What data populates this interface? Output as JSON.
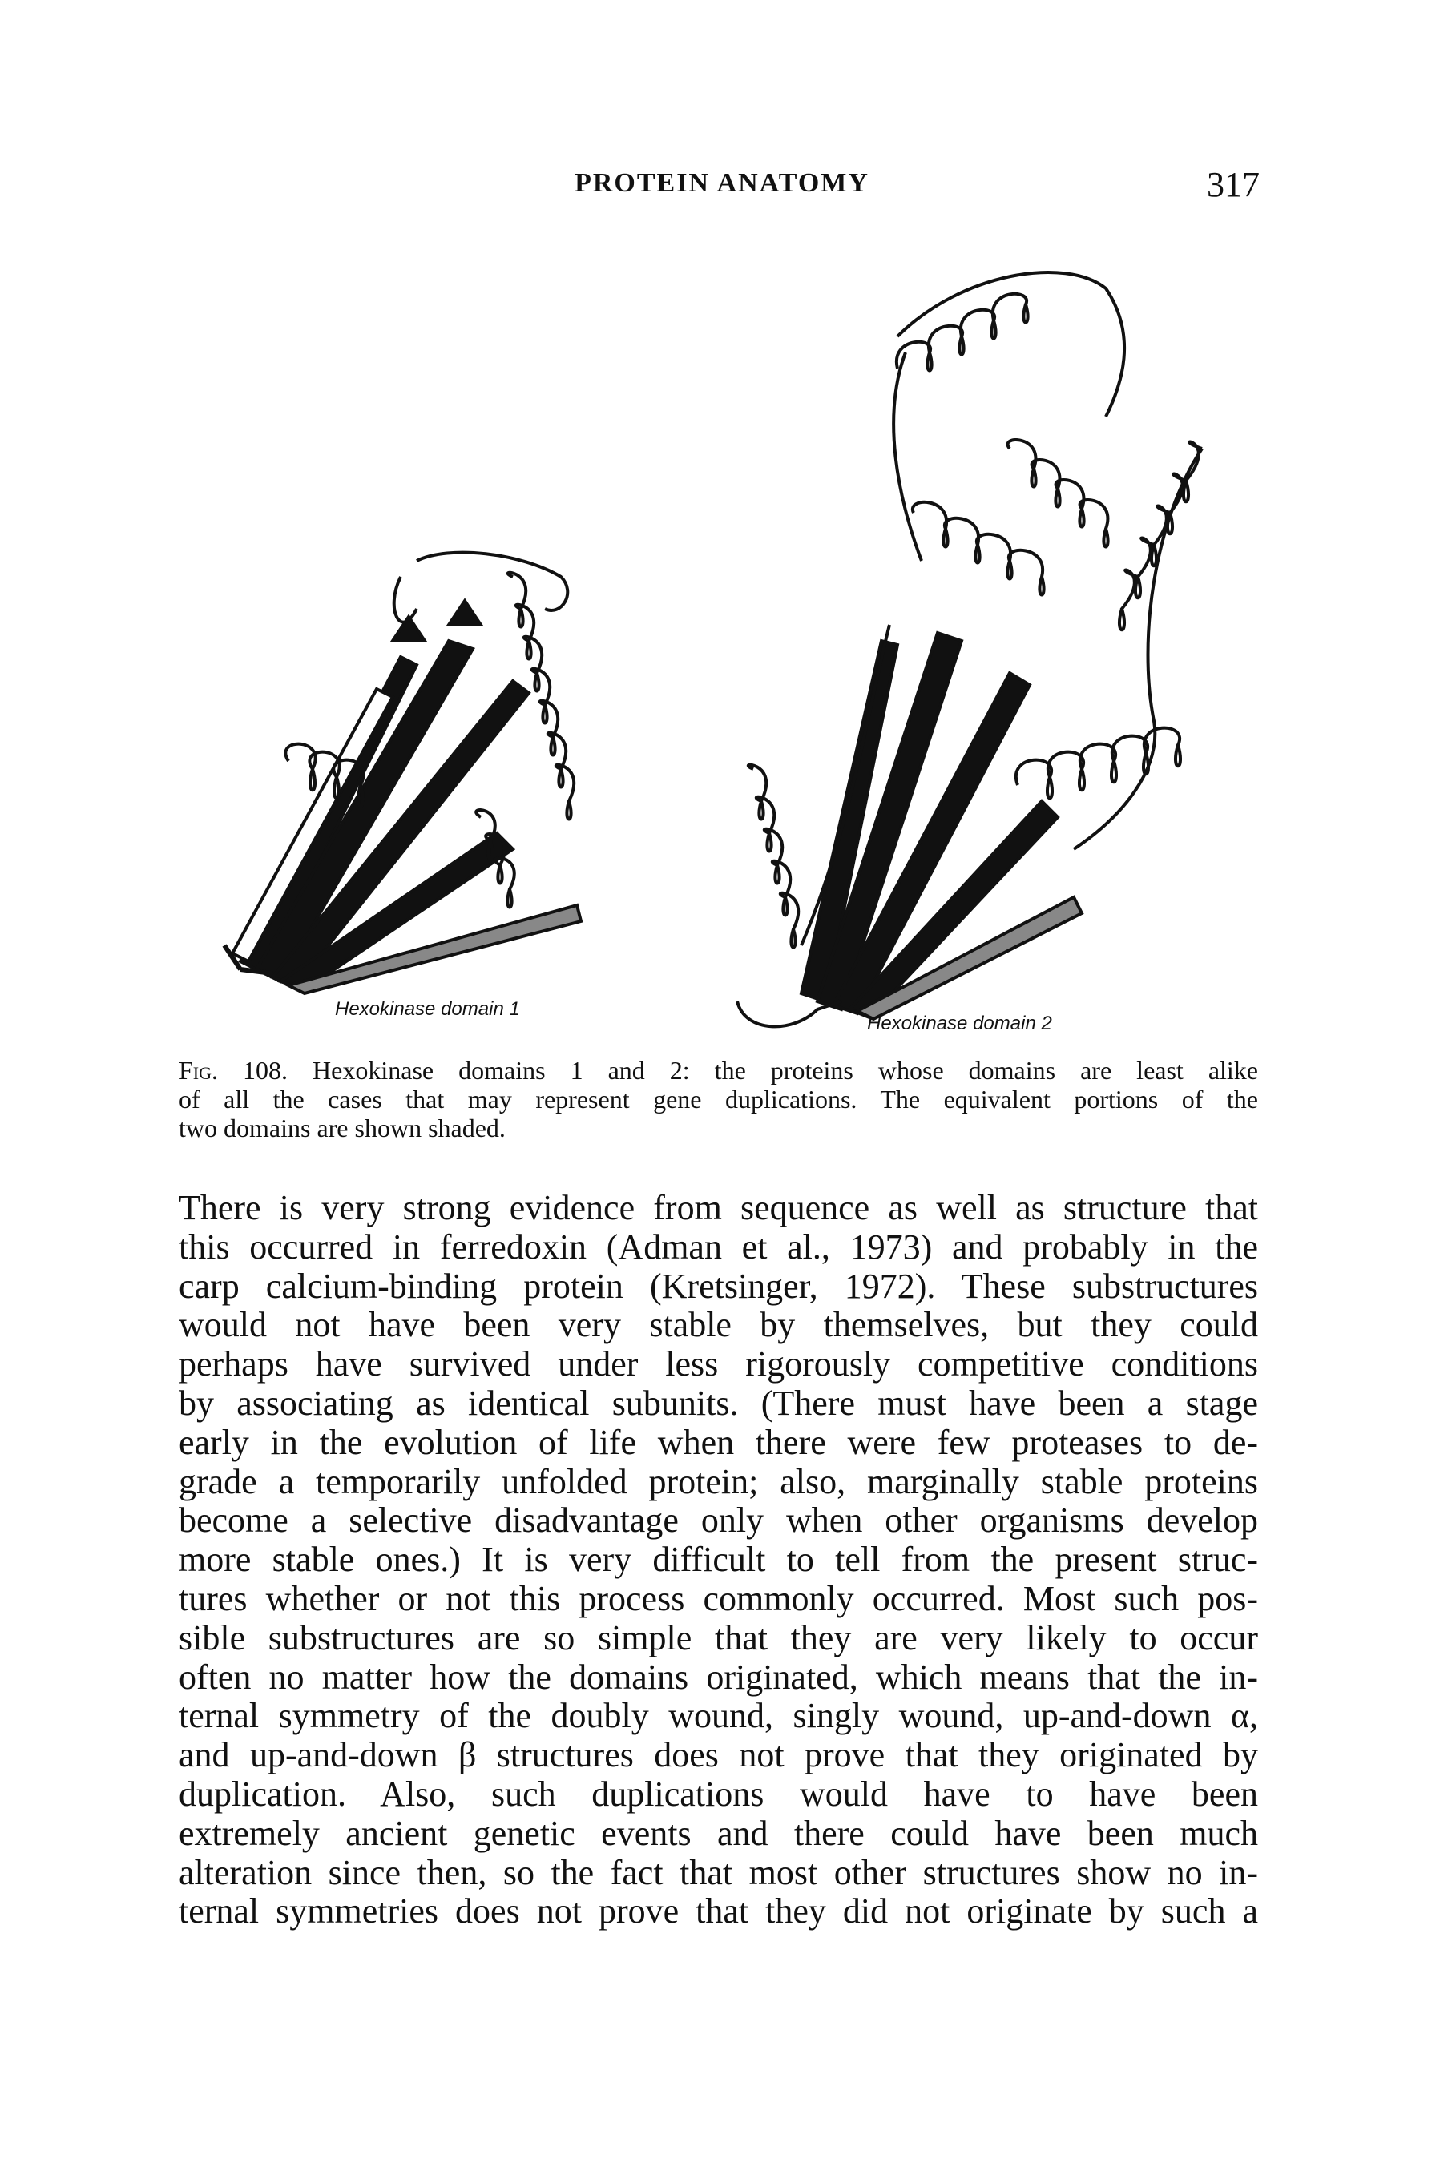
{
  "header": {
    "title": "PROTEIN ANATOMY",
    "page_number": "317"
  },
  "figure": {
    "labels": [
      "Hexokinase domain 1",
      "Hexokinase domain 2"
    ]
  },
  "caption": {
    "label": "Fig. 108.",
    "lines": [
      "Hexokinase domains 1 and 2: the proteins whose domains are least alike",
      "of all the cases that may represent gene duplications. The equivalent portions of the",
      "two domains are shown shaded."
    ]
  },
  "body": {
    "lines": [
      "There is very strong evidence from sequence as well as structure that",
      "this occurred in ferredoxin (Adman et al., 1973) and probably in the",
      "carp calcium-binding protein (Kretsinger, 1972). These substructures",
      "would not have been very stable by themselves, but they could",
      "perhaps have survived under less rigorously competitive conditions",
      "by associating as identical subunits. (There must have been a stage",
      "early in the evolution of life when there were few proteases to de-",
      "grade a temporarily unfolded protein; also, marginally stable proteins",
      "become a selective disadvantage only when other organisms develop",
      "more stable ones.) It is very difficult to tell from the present struc-",
      "tures whether or not this process commonly occurred. Most such pos-",
      "sible substructures are so simple that they are very likely to occur",
      "often no matter how the domains originated, which means that the in-",
      "ternal symmetry of the doubly wound, singly wound, up-and-down α,",
      "and up-and-down β structures does not prove that they originated by",
      "duplication. Also, such duplications would have to have been",
      "extremely ancient genetic events and there could have been much",
      "alteration since then, so the fact that most other structures show no in-",
      "ternal symmetries does not prove that they did not originate by such a"
    ]
  }
}
